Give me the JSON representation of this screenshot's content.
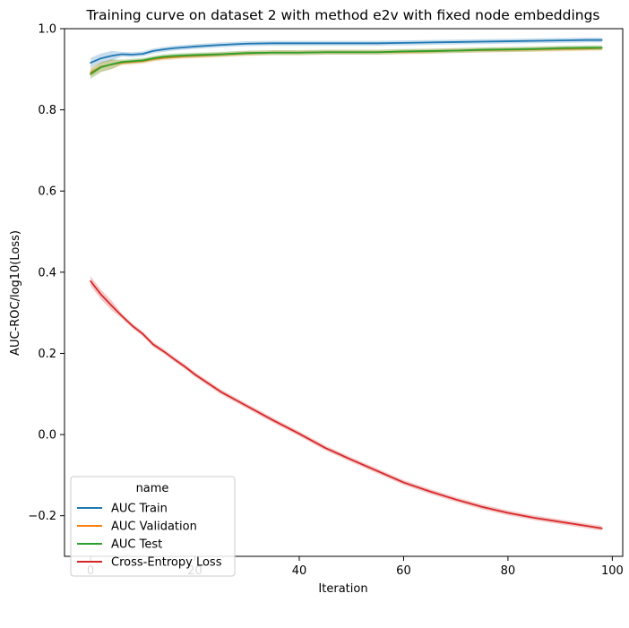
{
  "chart_data": {
    "type": "line",
    "title": "Training curve on dataset 2 with method e2v with fixed node embeddings",
    "xlabel": "Iteration",
    "ylabel": "AUC-ROC/log10(Loss)",
    "xlim": [
      -5,
      102
    ],
    "ylim": [
      -0.3,
      1.0
    ],
    "xticks": [
      0,
      20,
      40,
      60,
      80,
      100
    ],
    "xtick_labels": [
      "0",
      "20",
      "40",
      "60",
      "80",
      "100"
    ],
    "yticks": [
      -0.2,
      0.0,
      0.2,
      0.4,
      0.6,
      0.8,
      1.0
    ],
    "ytick_labels": [
      "−0.2",
      "0.0",
      "0.2",
      "0.4",
      "0.6",
      "0.8",
      "1.0"
    ],
    "grid": false,
    "legend": {
      "title": "name",
      "placement": "lower-left"
    },
    "x": [
      0,
      2,
      4,
      6,
      8,
      10,
      12,
      14,
      16,
      18,
      20,
      25,
      30,
      35,
      40,
      45,
      50,
      55,
      60,
      65,
      70,
      75,
      80,
      85,
      90,
      95,
      98
    ],
    "series": [
      {
        "name": "AUC Train",
        "color": "#1f77b4",
        "values": [
          0.916,
          0.927,
          0.933,
          0.937,
          0.936,
          0.938,
          0.945,
          0.949,
          0.952,
          0.954,
          0.956,
          0.96,
          0.963,
          0.964,
          0.964,
          0.964,
          0.964,
          0.964,
          0.965,
          0.966,
          0.967,
          0.968,
          0.969,
          0.97,
          0.971,
          0.972,
          0.972
        ]
      },
      {
        "name": "AUC Validation",
        "color": "#ff7f0e",
        "values": [
          0.892,
          0.906,
          0.912,
          0.916,
          0.918,
          0.92,
          0.925,
          0.928,
          0.93,
          0.932,
          0.933,
          0.936,
          0.939,
          0.941,
          0.941,
          0.942,
          0.942,
          0.942,
          0.943,
          0.944,
          0.946,
          0.947,
          0.948,
          0.949,
          0.95,
          0.951,
          0.952
        ]
      },
      {
        "name": "AUC Test",
        "color": "#2ca02c",
        "values": [
          0.888,
          0.905,
          0.912,
          0.918,
          0.92,
          0.922,
          0.927,
          0.931,
          0.933,
          0.934,
          0.935,
          0.937,
          0.94,
          0.941,
          0.941,
          0.942,
          0.942,
          0.942,
          0.944,
          0.945,
          0.946,
          0.948,
          0.949,
          0.95,
          0.952,
          0.953,
          0.953
        ]
      },
      {
        "name": "Cross-Entropy Loss",
        "color": "#d62728",
        "values": [
          0.378,
          0.345,
          0.318,
          0.292,
          0.268,
          0.248,
          0.222,
          0.205,
          0.186,
          0.168,
          0.148,
          0.105,
          0.07,
          0.035,
          0.002,
          -0.033,
          -0.062,
          -0.09,
          -0.118,
          -0.14,
          -0.16,
          -0.178,
          -0.193,
          -0.205,
          -0.215,
          -0.225,
          -0.231
        ]
      }
    ]
  }
}
